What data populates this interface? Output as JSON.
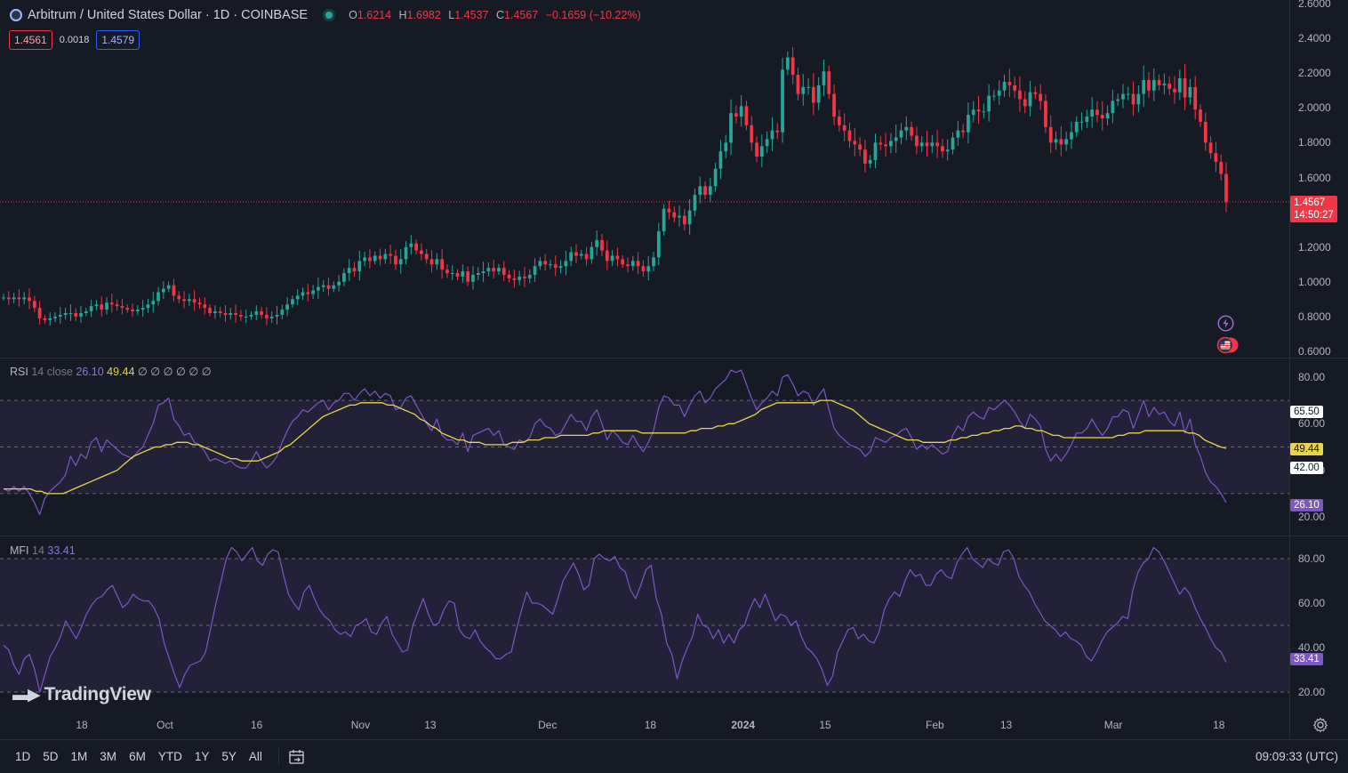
{
  "header": {
    "symbol_title": "Arbitrum / United States Dollar · 1D · COINBASE",
    "open_key": "O",
    "open": "1.6214",
    "high_key": "H",
    "high": "1.6982",
    "low_key": "L",
    "low": "1.4537",
    "close_key": "C",
    "close": "1.4567",
    "change": "−0.1659 (−10.22%)"
  },
  "bid_ask": {
    "sell": "1.4561",
    "spread": "0.0018",
    "buy": "1.4579"
  },
  "price_axis": {
    "ticks": [
      "2.6000",
      "2.4000",
      "2.2000",
      "2.0000",
      "1.8000",
      "1.6000",
      "1.2000",
      "1.0000",
      "0.8000",
      "0.6000"
    ],
    "current_price": "1.4567",
    "countdown": "14:50:27"
  },
  "rsi_panel": {
    "name": "RSI",
    "params": "14 close",
    "value": "26.10",
    "ma_value": "49.44",
    "extras": "∅ ∅ ∅ ∅ ∅ ∅",
    "ticks": [
      "80.00",
      "60.00",
      "40.00",
      "20.00"
    ],
    "tag_upper": "65.50",
    "tag_ma": "49.44",
    "tag_mid": "42.00",
    "tag_value": "26.10"
  },
  "mfi_panel": {
    "name": "MFI",
    "params": "14",
    "value": "33.41",
    "ticks": [
      "80.00",
      "60.00",
      "40.00",
      "20.00"
    ],
    "tag_value": "33.41"
  },
  "time_axis": [
    "18",
    "Oct",
    "16",
    "Nov",
    "13",
    "Dec",
    "18",
    "2024",
    "15",
    "Feb",
    "13",
    "Mar",
    "18"
  ],
  "branding": {
    "name": "TradingView"
  },
  "toolbar": {
    "ranges": [
      "1D",
      "5D",
      "1M",
      "3M",
      "6M",
      "YTD",
      "1Y",
      "5Y",
      "All"
    ],
    "clock": "09:09:33 (UTC)"
  },
  "colors": {
    "background": "#161a25",
    "up": "#26a69a",
    "down": "#f23645",
    "rsi": "#7e57c2",
    "rsi_ma": "#e8d44d",
    "mfi": "#7e57c2"
  },
  "chart_data": [
    {
      "type": "candlestick",
      "title": "Arbitrum / United States Dollar · 1D · COINBASE",
      "ylim": [
        0.6,
        2.6
      ],
      "x_tick_labels": [
        "18",
        "Oct",
        "16",
        "Nov",
        "13",
        "Dec",
        "18",
        "2024",
        "15",
        "Feb",
        "13",
        "Mar",
        "18"
      ],
      "close": [
        0.91,
        0.9,
        0.91,
        0.9,
        0.91,
        0.89,
        0.85,
        0.79,
        0.78,
        0.79,
        0.8,
        0.81,
        0.82,
        0.82,
        0.8,
        0.82,
        0.83,
        0.86,
        0.87,
        0.84,
        0.88,
        0.87,
        0.86,
        0.85,
        0.84,
        0.83,
        0.84,
        0.85,
        0.87,
        0.89,
        0.94,
        0.96,
        0.98,
        0.92,
        0.9,
        0.89,
        0.9,
        0.88,
        0.87,
        0.85,
        0.82,
        0.83,
        0.82,
        0.81,
        0.82,
        0.81,
        0.8,
        0.8,
        0.81,
        0.83,
        0.81,
        0.79,
        0.8,
        0.81,
        0.84,
        0.87,
        0.9,
        0.92,
        0.94,
        0.93,
        0.95,
        0.97,
        0.98,
        0.96,
        0.98,
        1.0,
        1.05,
        1.08,
        1.06,
        1.12,
        1.14,
        1.12,
        1.15,
        1.13,
        1.16,
        1.15,
        1.1,
        1.13,
        1.2,
        1.22,
        1.18,
        1.16,
        1.13,
        1.1,
        1.13,
        1.07,
        1.05,
        1.05,
        1.03,
        1.06,
        1.0,
        1.04,
        1.05,
        1.06,
        1.08,
        1.06,
        1.08,
        1.04,
        1.02,
        1.01,
        1.03,
        1.02,
        1.04,
        1.09,
        1.12,
        1.1,
        1.1,
        1.08,
        1.09,
        1.12,
        1.17,
        1.15,
        1.16,
        1.13,
        1.2,
        1.24,
        1.18,
        1.12,
        1.15,
        1.13,
        1.1,
        1.09,
        1.12,
        1.09,
        1.06,
        1.09,
        1.14,
        1.29,
        1.42,
        1.4,
        1.37,
        1.38,
        1.33,
        1.41,
        1.5,
        1.55,
        1.5,
        1.55,
        1.65,
        1.75,
        1.8,
        1.97,
        1.95,
        2.01,
        1.9,
        1.8,
        1.72,
        1.78,
        1.82,
        1.87,
        1.86,
        2.22,
        2.29,
        2.19,
        2.08,
        2.12,
        2.12,
        2.03,
        2.13,
        2.21,
        2.08,
        1.95,
        1.9,
        1.87,
        1.81,
        1.79,
        1.76,
        1.68,
        1.7,
        1.8,
        1.79,
        1.78,
        1.81,
        1.83,
        1.87,
        1.89,
        1.84,
        1.78,
        1.8,
        1.78,
        1.8,
        1.78,
        1.75,
        1.76,
        1.83,
        1.87,
        1.86,
        1.96,
        1.99,
        1.98,
        1.98,
        2.07,
        2.07,
        2.1,
        2.15,
        2.13,
        2.1,
        2.05,
        2.01,
        2.09,
        2.08,
        2.04,
        1.89,
        1.8,
        1.82,
        1.79,
        1.82,
        1.86,
        1.92,
        1.92,
        1.95,
        1.99,
        1.96,
        1.94,
        1.97,
        2.04,
        2.05,
        2.08,
        2.08,
        2.02,
        2.08,
        2.16,
        2.1,
        2.16,
        2.13,
        2.14,
        2.11,
        2.09,
        2.17,
        2.06,
        2.12,
        1.99,
        1.92,
        1.8,
        1.74,
        1.69,
        1.62,
        1.46
      ]
    },
    {
      "type": "line",
      "title": "RSI 14 close",
      "ylim": [
        12,
        88
      ],
      "reference_lines": [
        70,
        50,
        30
      ],
      "series": [
        {
          "name": "RSI",
          "values": [
            32,
            31,
            33,
            31,
            33,
            30,
            26,
            21,
            28,
            31,
            33,
            35,
            38,
            46,
            42,
            47,
            45,
            52,
            54,
            48,
            53,
            51,
            49,
            47,
            46,
            45,
            48,
            50,
            55,
            60,
            68,
            69,
            71,
            62,
            59,
            55,
            56,
            52,
            51,
            48,
            44,
            45,
            44,
            43,
            44,
            42,
            41,
            41,
            44,
            48,
            44,
            41,
            43,
            46,
            52,
            57,
            61,
            63,
            66,
            65,
            67,
            69,
            70,
            66,
            69,
            70,
            73,
            73,
            70,
            73,
            75,
            72,
            74,
            71,
            73,
            72,
            66,
            67,
            71,
            72,
            68,
            64,
            60,
            57,
            62,
            55,
            53,
            53,
            51,
            56,
            48,
            55,
            56,
            57,
            58,
            55,
            57,
            51,
            50,
            49,
            53,
            52,
            54,
            60,
            62,
            59,
            58,
            55,
            56,
            60,
            64,
            61,
            61,
            57,
            63,
            66,
            60,
            53,
            57,
            55,
            52,
            51,
            55,
            51,
            48,
            52,
            57,
            67,
            72,
            71,
            68,
            68,
            63,
            68,
            72,
            74,
            69,
            71,
            75,
            77,
            79,
            83,
            82,
            83,
            77,
            71,
            66,
            69,
            71,
            74,
            72,
            80,
            81,
            77,
            72,
            74,
            73,
            68,
            72,
            75,
            66,
            58,
            55,
            53,
            51,
            50,
            49,
            46,
            48,
            54,
            53,
            52,
            54,
            55,
            57,
            58,
            54,
            49,
            51,
            49,
            51,
            49,
            47,
            48,
            55,
            59,
            57,
            63,
            65,
            63,
            62,
            67,
            66,
            68,
            70,
            68,
            65,
            61,
            58,
            64,
            62,
            59,
            49,
            44,
            47,
            44,
            47,
            51,
            56,
            56,
            58,
            62,
            58,
            55,
            58,
            63,
            63,
            66,
            65,
            58,
            64,
            70,
            63,
            67,
            64,
            65,
            61,
            59,
            65,
            56,
            62,
            51,
            46,
            39,
            35,
            33,
            30,
            26.1
          ]
        },
        {
          "name": "RSI-based MA",
          "values": [
            32,
            32,
            32,
            32,
            32,
            32,
            31,
            31,
            30,
            30,
            30,
            30,
            31,
            32,
            33,
            34,
            35,
            36,
            37,
            38,
            39,
            40,
            42,
            44,
            46,
            47,
            48,
            49,
            50,
            50,
            51,
            51,
            52,
            52,
            52,
            51,
            51,
            50,
            49,
            48,
            47,
            46,
            45,
            45,
            44,
            44,
            44,
            44,
            45,
            46,
            47,
            48,
            50,
            51,
            53,
            55,
            57,
            59,
            61,
            63,
            64,
            65,
            66,
            67,
            68,
            68,
            69,
            69,
            69,
            69,
            69,
            68,
            68,
            67,
            66,
            65,
            64,
            62,
            61,
            59,
            58,
            56,
            55,
            54,
            53,
            53,
            52,
            52,
            52,
            51,
            51,
            51,
            51,
            51,
            52,
            52,
            52,
            53,
            53,
            53,
            54,
            54,
            54,
            55,
            55,
            55,
            55,
            55,
            55,
            56,
            56,
            57,
            57,
            57,
            57,
            57,
            57,
            57,
            56,
            56,
            56,
            56,
            56,
            56,
            56,
            56,
            56,
            57,
            57,
            58,
            58,
            58,
            59,
            59,
            60,
            60,
            61,
            62,
            63,
            64,
            66,
            67,
            68,
            69,
            69,
            69,
            69,
            69,
            69,
            69,
            69,
            70,
            70,
            70,
            69,
            68,
            67,
            66,
            64,
            62,
            60,
            59,
            58,
            57,
            56,
            55,
            54,
            53,
            53,
            53,
            52,
            52,
            52,
            52,
            52,
            53,
            53,
            54,
            54,
            55,
            55,
            56,
            56,
            57,
            57,
            58,
            58,
            59,
            59,
            58,
            58,
            57,
            57,
            56,
            55,
            55,
            54,
            54,
            54,
            54,
            54,
            54,
            54,
            54,
            54,
            54,
            55,
            55,
            56,
            56,
            56,
            57,
            57,
            57,
            57,
            57,
            57,
            57,
            57,
            56,
            56,
            55,
            53,
            52,
            51,
            50,
            49.44
          ]
        }
      ]
    },
    {
      "type": "line",
      "title": "MFI 14",
      "ylim": [
        12,
        90
      ],
      "reference_lines": [
        80,
        50,
        20
      ],
      "series": [
        {
          "name": "MFI",
          "values": [
            41,
            39,
            32,
            28,
            35,
            37,
            30,
            20,
            28,
            36,
            40,
            45,
            52,
            48,
            44,
            49,
            55,
            59,
            62,
            63,
            66,
            68,
            63,
            58,
            60,
            64,
            62,
            61,
            61,
            58,
            53,
            42,
            35,
            28,
            22,
            28,
            32,
            33,
            34,
            38,
            49,
            60,
            70,
            80,
            85,
            83,
            79,
            82,
            85,
            79,
            77,
            82,
            84,
            83,
            73,
            64,
            60,
            57,
            65,
            68,
            62,
            57,
            54,
            52,
            48,
            46,
            47,
            45,
            50,
            51,
            53,
            47,
            46,
            51,
            54,
            46,
            42,
            38,
            39,
            50,
            56,
            62,
            55,
            50,
            51,
            57,
            61,
            60,
            48,
            45,
            44,
            48,
            43,
            40,
            38,
            35,
            35,
            37,
            38,
            48,
            57,
            65,
            60,
            60,
            59,
            57,
            55,
            62,
            70,
            74,
            78,
            73,
            66,
            68,
            80,
            82,
            80,
            79,
            81,
            76,
            74,
            66,
            62,
            68,
            75,
            77,
            62,
            55,
            42,
            37,
            26,
            34,
            40,
            45,
            55,
            50,
            49,
            44,
            48,
            42,
            46,
            42,
            48,
            50,
            57,
            62,
            58,
            64,
            58,
            52,
            55,
            54,
            50,
            52,
            45,
            40,
            38,
            35,
            30,
            23,
            27,
            38,
            43,
            48,
            49,
            44,
            46,
            43,
            42,
            47,
            57,
            62,
            65,
            63,
            70,
            75,
            72,
            73,
            68,
            68,
            73,
            75,
            72,
            71,
            78,
            82,
            85,
            80,
            78,
            76,
            80,
            78,
            77,
            83,
            84,
            80,
            72,
            68,
            65,
            60,
            56,
            52,
            50,
            48,
            45,
            47,
            44,
            43,
            41,
            36,
            34,
            38,
            43,
            47,
            49,
            51,
            54,
            53,
            66,
            74,
            78,
            80,
            85,
            83,
            79,
            74,
            69,
            64,
            67,
            64,
            58,
            53,
            49,
            44,
            40,
            38,
            33.41
          ]
        }
      ]
    }
  ]
}
